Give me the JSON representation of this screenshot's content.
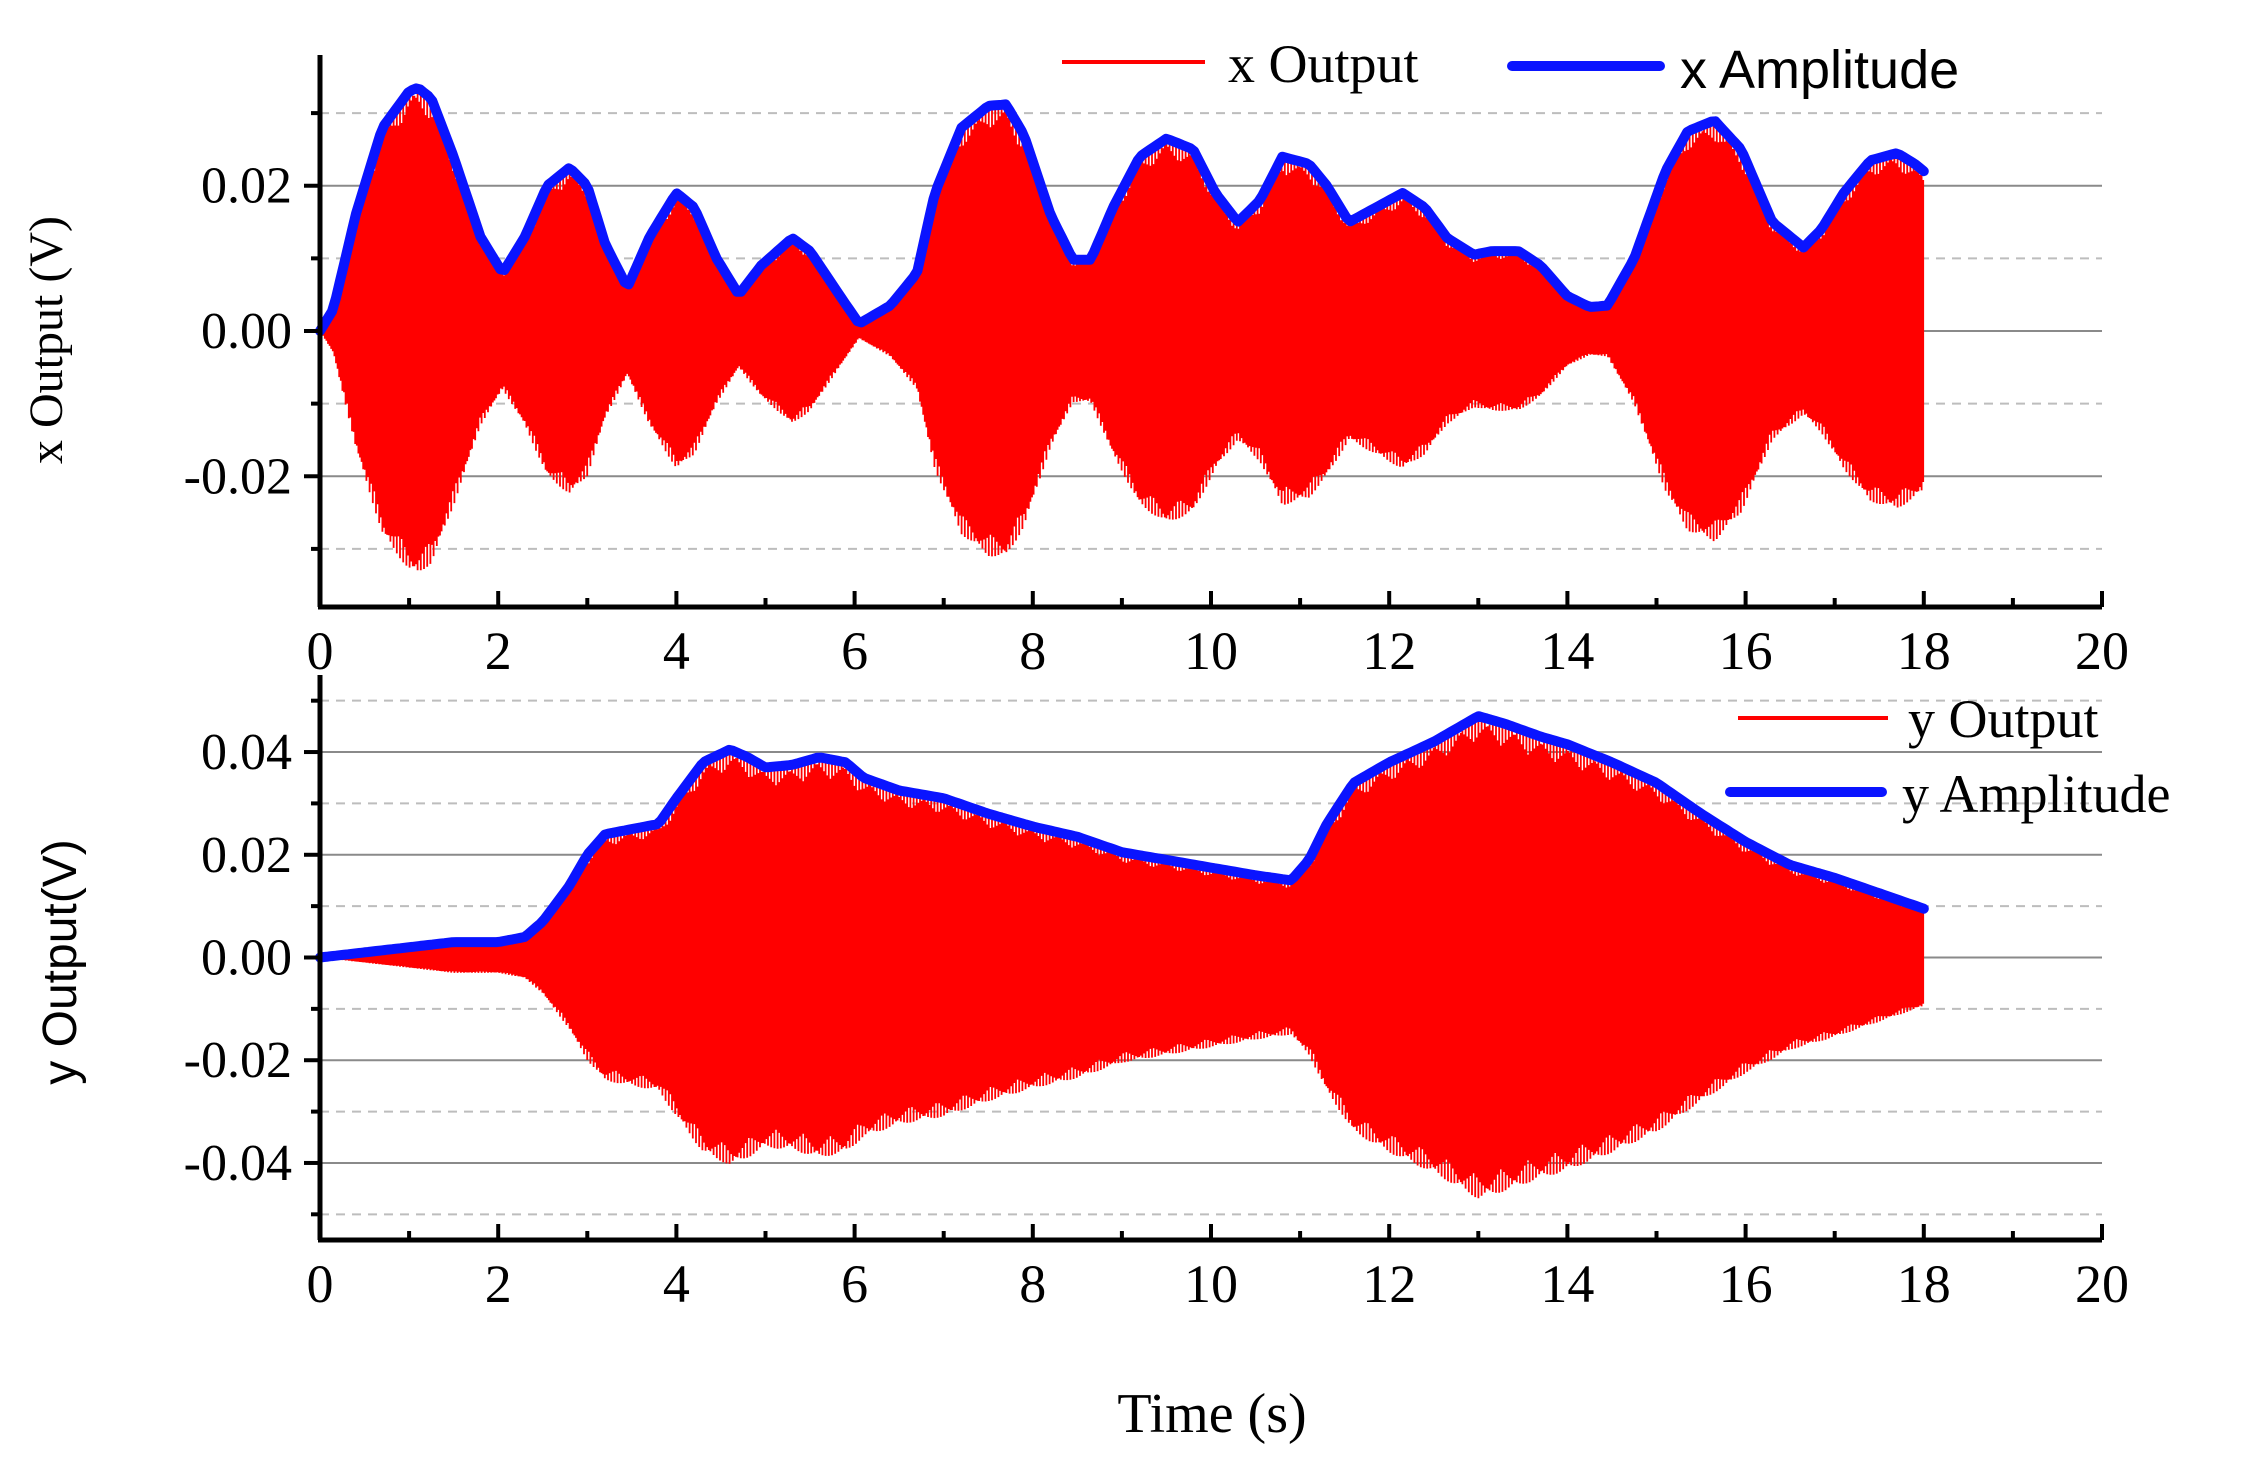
{
  "colors": {
    "output": "#ff0000",
    "amplitude": "#0a14ff",
    "axis": "#000000",
    "grid_major": "#8a8a8a",
    "grid_minor": "#bdbdbd",
    "background": "#ffffff"
  },
  "shared_xlabel": "Time (s)",
  "chart_data": [
    {
      "type": "line",
      "id": "x",
      "ylabel": "x Output (V)",
      "xlabel": "Time (s)",
      "xlim": [
        0,
        20
      ],
      "ylim": [
        -0.038,
        0.038
      ],
      "x_ticks": [
        0,
        2,
        4,
        6,
        8,
        10,
        12,
        14,
        16,
        18,
        20
      ],
      "x_tick_labels": [
        "0",
        "2",
        "4",
        "6",
        "8",
        "10",
        "12",
        "14",
        "16",
        "18",
        "20"
      ],
      "y_ticks": [
        -0.02,
        0.0,
        0.02
      ],
      "y_tick_labels": [
        "-0.02",
        "0.00",
        "0.02"
      ],
      "y_minor_grid": [
        -0.03,
        -0.01,
        0.01,
        0.03
      ],
      "grid": true,
      "legend_position": "top-right",
      "series": [
        {
          "name": "x Output",
          "style": "oscillation",
          "description_source": "envelope",
          "x": [],
          "values": []
        },
        {
          "name": "x Amplitude",
          "style": "envelope",
          "x": [
            0,
            0.15,
            0.4,
            0.7,
            1.0,
            1.1,
            1.25,
            1.5,
            1.8,
            2.05,
            2.3,
            2.55,
            2.8,
            3.0,
            3.2,
            3.45,
            3.7,
            4.0,
            4.2,
            4.45,
            4.7,
            4.95,
            5.3,
            5.5,
            5.8,
            6.05,
            6.4,
            6.7,
            6.9,
            7.2,
            7.5,
            7.7,
            7.9,
            8.2,
            8.45,
            8.65,
            8.9,
            9.2,
            9.5,
            9.8,
            10.05,
            10.3,
            10.55,
            10.8,
            11.1,
            11.3,
            11.55,
            11.85,
            12.15,
            12.4,
            12.65,
            12.95,
            13.15,
            13.45,
            13.7,
            14.0,
            14.25,
            14.45,
            14.75,
            15.1,
            15.35,
            15.65,
            15.95,
            16.3,
            16.65,
            16.85,
            17.1,
            17.4,
            17.7,
            17.9,
            18.0
          ],
          "values": [
            0.0,
            0.003,
            0.016,
            0.028,
            0.033,
            0.0335,
            0.032,
            0.024,
            0.013,
            0.008,
            0.013,
            0.02,
            0.0225,
            0.02,
            0.012,
            0.006,
            0.013,
            0.019,
            0.017,
            0.01,
            0.005,
            0.009,
            0.0128,
            0.011,
            0.0055,
            0.001,
            0.0035,
            0.008,
            0.019,
            0.028,
            0.031,
            0.0312,
            0.027,
            0.016,
            0.0098,
            0.0098,
            0.017,
            0.024,
            0.0265,
            0.025,
            0.019,
            0.015,
            0.018,
            0.024,
            0.023,
            0.02,
            0.015,
            0.017,
            0.019,
            0.017,
            0.0128,
            0.0105,
            0.011,
            0.011,
            0.009,
            0.0048,
            0.0033,
            0.0035,
            0.01,
            0.022,
            0.0275,
            0.029,
            0.025,
            0.015,
            0.0115,
            0.014,
            0.019,
            0.0235,
            0.0245,
            0.023,
            0.022
          ]
        }
      ]
    },
    {
      "type": "line",
      "id": "y",
      "ylabel": "y Output(V)",
      "xlabel": "Time (s)",
      "xlim": [
        0,
        20
      ],
      "ylim": [
        -0.055,
        0.055
      ],
      "x_ticks": [
        0,
        2,
        4,
        6,
        8,
        10,
        12,
        14,
        16,
        18,
        20
      ],
      "x_tick_labels": [
        "0",
        "2",
        "4",
        "6",
        "8",
        "10",
        "12",
        "14",
        "16",
        "18",
        "20"
      ],
      "y_ticks": [
        -0.04,
        -0.02,
        0.0,
        0.02,
        0.04
      ],
      "y_tick_labels": [
        "-0.04",
        "-0.02",
        "0.00",
        "0.02",
        "0.04"
      ],
      "y_minor_grid": [
        -0.05,
        -0.03,
        -0.01,
        0.01,
        0.03,
        0.05
      ],
      "grid": true,
      "legend_position": "top-right",
      "series": [
        {
          "name": "y Output",
          "style": "oscillation",
          "description_source": "envelope",
          "x": [],
          "values": []
        },
        {
          "name": "y Amplitude",
          "style": "envelope",
          "x": [
            0,
            0.5,
            1.0,
            1.5,
            2.0,
            2.3,
            2.5,
            2.8,
            3.0,
            3.2,
            3.5,
            3.8,
            4.0,
            4.3,
            4.6,
            4.8,
            5.0,
            5.3,
            5.6,
            5.9,
            6.1,
            6.5,
            7.0,
            7.5,
            8.0,
            8.5,
            9.0,
            9.5,
            10.0,
            10.5,
            10.9,
            11.1,
            11.3,
            11.6,
            12.0,
            12.5,
            13.0,
            13.3,
            13.7,
            14.0,
            14.5,
            15.0,
            15.5,
            16.0,
            16.5,
            17.0,
            17.5,
            18.0
          ],
          "values": [
            0.0,
            0.001,
            0.002,
            0.003,
            0.003,
            0.004,
            0.007,
            0.014,
            0.02,
            0.024,
            0.025,
            0.026,
            0.031,
            0.038,
            0.0405,
            0.039,
            0.037,
            0.0375,
            0.039,
            0.038,
            0.035,
            0.0325,
            0.031,
            0.028,
            0.0255,
            0.0235,
            0.0205,
            0.019,
            0.0175,
            0.016,
            0.015,
            0.019,
            0.026,
            0.034,
            0.038,
            0.042,
            0.047,
            0.0455,
            0.043,
            0.0415,
            0.038,
            0.034,
            0.028,
            0.0225,
            0.018,
            0.0155,
            0.0125,
            0.0095
          ]
        }
      ]
    }
  ]
}
